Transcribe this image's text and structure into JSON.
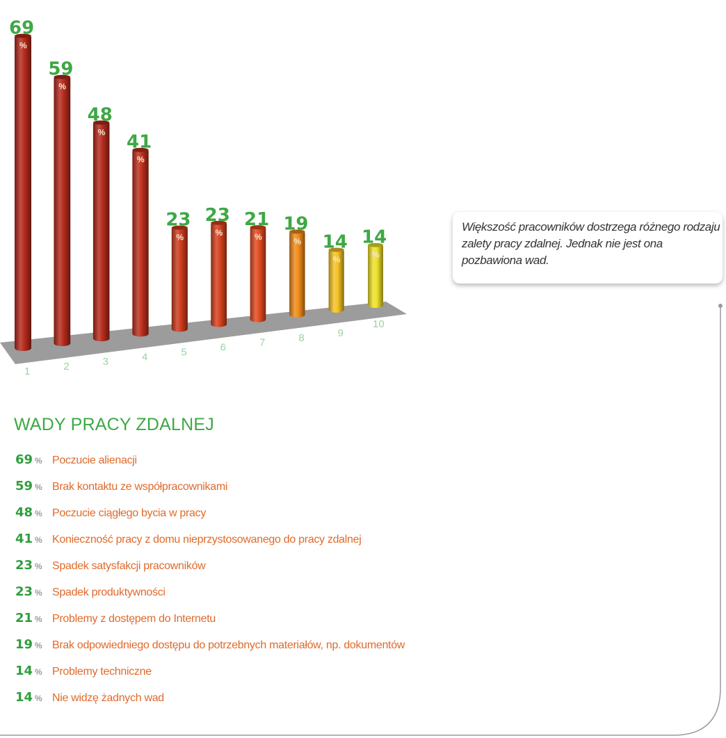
{
  "chart_data": {
    "type": "bar",
    "categories": [
      "1",
      "2",
      "3",
      "4",
      "5",
      "6",
      "7",
      "8",
      "9",
      "10"
    ],
    "values": [
      69,
      59,
      48,
      41,
      23,
      23,
      21,
      19,
      14,
      14
    ],
    "unit_label": "%",
    "colors": [
      "#b52a1c",
      "#b52a1c",
      "#b52a1c",
      "#bb2e1c",
      "#cc3a1c",
      "#d5401d",
      "#e04a1e",
      "#ef8a18",
      "#f4c223",
      "#eee02a"
    ]
  },
  "callout": {
    "text": "Większość pracowników dostrzega różnego rodzaju zalety pracy zdalnej. Jednak nie jest ona pozbawiona wad."
  },
  "section": {
    "title": "WADY PRACY ZDALNEJ",
    "pct_symbol": "%",
    "items": [
      {
        "value": "69",
        "label": "Poczucie alienacji"
      },
      {
        "value": "59",
        "label": "Brak kontaktu ze współpracownikami"
      },
      {
        "value": "48",
        "label": "Poczucie ciągłego bycia w pracy"
      },
      {
        "value": "41",
        "label": "Konieczność pracy z domu nieprzystosowanego do pracy zdalnej"
      },
      {
        "value": "23",
        "label": "Spadek satysfakcji pracowników"
      },
      {
        "value": "23",
        "label": "Spadek produktywności"
      },
      {
        "value": "21",
        "label": "Problemy z dostępem do Internetu"
      },
      {
        "value": "19",
        "label": "Brak odpowiedniego dostępu do potrzebnych materiałów, np. dokumentów"
      },
      {
        "value": "14",
        "label": " Problemy techniczne"
      },
      {
        "value": "14",
        "label": "Nie widzę żadnych wad"
      }
    ]
  }
}
